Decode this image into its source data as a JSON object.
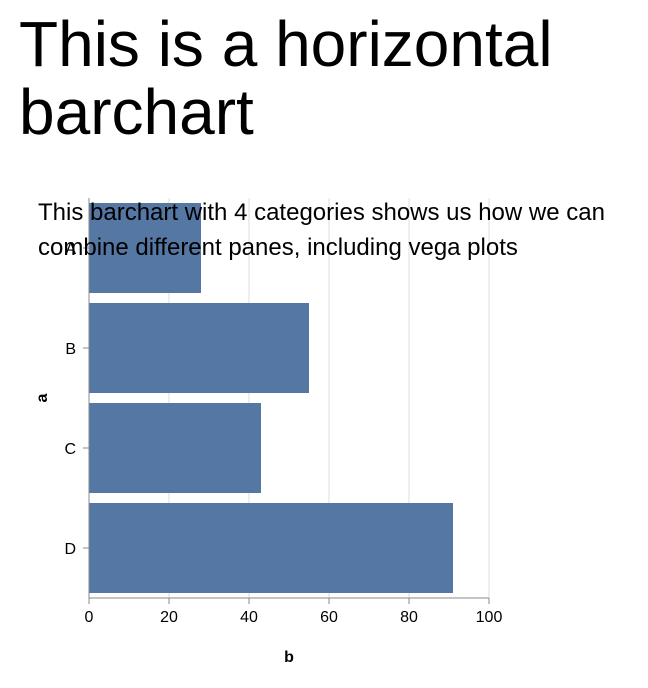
{
  "page": {
    "title": "This is a horizontal barchart",
    "description": "This barchart with 4 categories shows us how we can combine different panes, including vega plots"
  },
  "chart_data": {
    "type": "bar",
    "orientation": "horizontal",
    "categories": [
      "A",
      "B",
      "C",
      "D"
    ],
    "values": [
      28,
      55,
      43,
      91
    ],
    "xlabel": "b",
    "ylabel": "a",
    "xlim": [
      0,
      100
    ],
    "xticks": [
      0,
      20,
      40,
      60,
      80,
      100
    ],
    "grid": true,
    "bar_color": "#5577a3"
  }
}
